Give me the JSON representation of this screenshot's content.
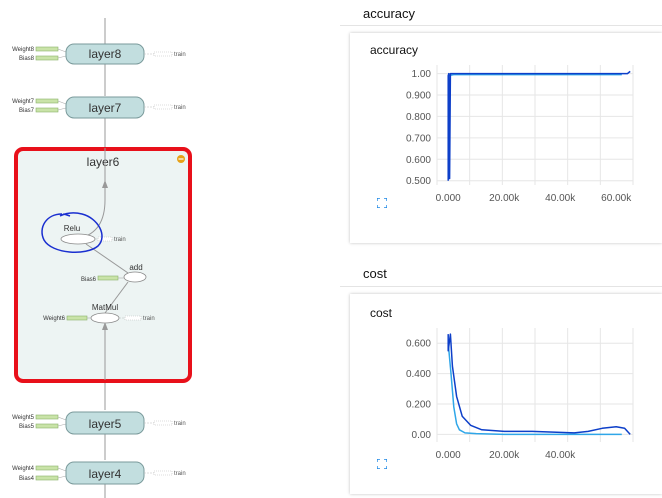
{
  "graph": {
    "layer8": {
      "name": "layer8",
      "inputs": [
        "Weight8",
        "Bias8"
      ],
      "output": "train"
    },
    "layer7": {
      "name": "layer7",
      "inputs": [
        "Weight7",
        "Bias7"
      ],
      "output": "train"
    },
    "layer6": {
      "name": "layer6",
      "ops": {
        "relu": {
          "label": "Relu",
          "output": "train"
        },
        "add": {
          "label": "add",
          "input": "Bias6"
        },
        "matmul": {
          "label": "MatMul",
          "input": "Weight6",
          "output": "train"
        }
      }
    },
    "layer5": {
      "name": "layer5",
      "inputs": [
        "Weight5",
        "Bias5"
      ],
      "output": "train"
    },
    "layer4": {
      "name": "layer4",
      "inputs": [
        "Weight4",
        "Bias4"
      ],
      "output": "train"
    }
  },
  "colors": {
    "node_fill": "#c2dedf",
    "node_stroke": "#7a9a9b",
    "selection_border": "#e8101a",
    "expanded_bg": "#edf4f3",
    "line_dark": "#0d3fc9",
    "line_light": "#2fa6e8",
    "annotation": "#1a2fd0",
    "collapse_badge": "#e7a118"
  },
  "accuracy_section": {
    "title": "accuracy",
    "card_title": "accuracy",
    "chart_data": {
      "type": "line",
      "title": "accuracy",
      "x_ticks": [
        "0.000",
        "20.00k",
        "40.00k",
        "60.00k"
      ],
      "y_ticks": [
        "0.500",
        "0.600",
        "0.700",
        "0.800",
        "0.900",
        "1.00"
      ],
      "xlim": [
        -4000,
        66000
      ],
      "ylim": [
        0.48,
        1.04
      ],
      "grid": true,
      "series": [
        {
          "color": "#0d3fc9",
          "x": [
            0,
            0,
            200,
            500,
            800,
            2000,
            10000,
            20000,
            40000,
            60000,
            64000,
            65000
          ],
          "y": [
            0.5,
            0.99,
            1.0,
            0.51,
            1.0,
            1.0,
            1.0,
            1.0,
            1.0,
            1.0,
            1.0,
            1.01
          ]
        },
        {
          "color": "#2fa6e8",
          "x": [
            0,
            2000,
            10000,
            20000,
            40000,
            60000,
            62000
          ],
          "y": [
            0.99,
            0.995,
            0.995,
            0.995,
            0.995,
            0.995,
            0.995
          ]
        }
      ]
    }
  },
  "cost_section": {
    "title": "cost",
    "card_title": "cost",
    "chart_data": {
      "type": "line",
      "title": "cost",
      "x_ticks": [
        "0.000",
        "20.00k",
        "40.00k"
      ],
      "y_ticks": [
        "0.00",
        "0.200",
        "0.400",
        "0.600"
      ],
      "xlim": [
        -4000,
        66000
      ],
      "ylim": [
        -0.05,
        0.7
      ],
      "grid": true,
      "series": [
        {
          "color": "#0d3fc9",
          "x": [
            0,
            0,
            800,
            1500,
            3000,
            5000,
            8000,
            12000,
            20000,
            30000,
            45000,
            50000,
            55000,
            60000,
            63000,
            65000
          ],
          "y": [
            0.66,
            0.55,
            0.66,
            0.45,
            0.25,
            0.12,
            0.06,
            0.03,
            0.02,
            0.02,
            0.01,
            0.02,
            0.04,
            0.05,
            0.04,
            0.0
          ]
        },
        {
          "color": "#2fa6e8",
          "x": [
            0,
            1000,
            2000,
            3000,
            4000,
            6000,
            10000,
            20000,
            40000,
            60000,
            62000
          ],
          "y": [
            0.6,
            0.4,
            0.18,
            0.07,
            0.03,
            0.01,
            0.005,
            0.0,
            0.0,
            0.0,
            0.0
          ]
        }
      ]
    }
  }
}
